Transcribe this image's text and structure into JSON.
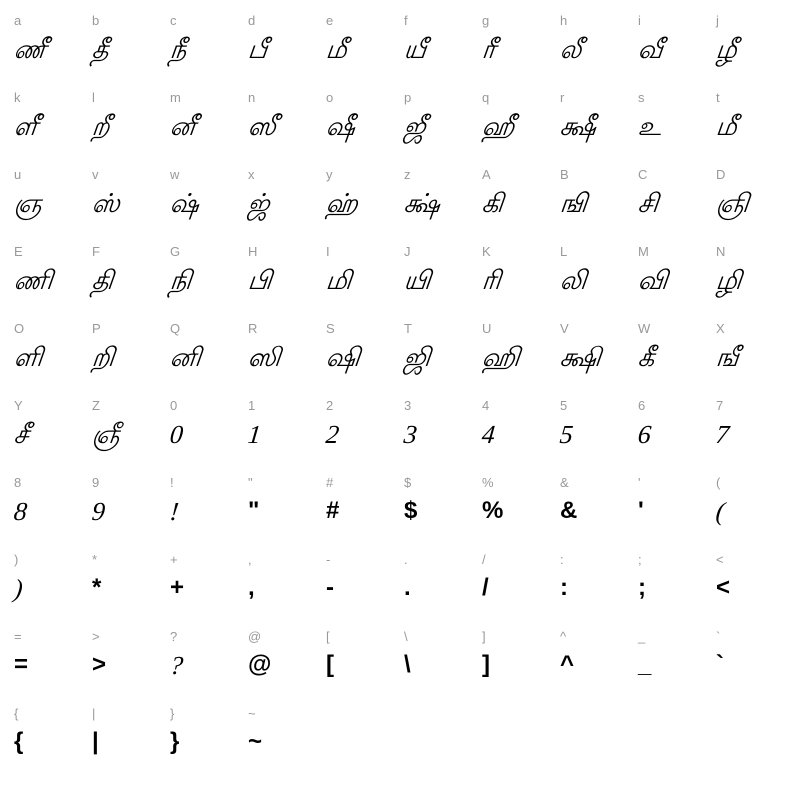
{
  "title": "font-character-map",
  "grid": {
    "columns": 10,
    "label_color": "#999999",
    "glyph_color": "#000000",
    "background_color": "#ffffff",
    "label_fontsize": 13,
    "glyph_fontsize": 26
  },
  "cells": [
    {
      "key": "a",
      "glyph": "ணீ",
      "style": "script"
    },
    {
      "key": "b",
      "glyph": "தீ",
      "style": "script"
    },
    {
      "key": "c",
      "glyph": "நீ",
      "style": "script"
    },
    {
      "key": "d",
      "glyph": "பீ",
      "style": "script"
    },
    {
      "key": "e",
      "glyph": "மீ",
      "style": "script"
    },
    {
      "key": "f",
      "glyph": "யீ",
      "style": "script"
    },
    {
      "key": "g",
      "glyph": "ரீ",
      "style": "script"
    },
    {
      "key": "h",
      "glyph": "லீ",
      "style": "script"
    },
    {
      "key": "i",
      "glyph": "வீ",
      "style": "script"
    },
    {
      "key": "j",
      "glyph": "ழீ",
      "style": "script"
    },
    {
      "key": "k",
      "glyph": "ளீ",
      "style": "script"
    },
    {
      "key": "l",
      "glyph": "றீ",
      "style": "script"
    },
    {
      "key": "m",
      "glyph": "னீ",
      "style": "script"
    },
    {
      "key": "n",
      "glyph": "ஸீ",
      "style": "script"
    },
    {
      "key": "o",
      "glyph": "ஷீ",
      "style": "script"
    },
    {
      "key": "p",
      "glyph": "ஜீ",
      "style": "script"
    },
    {
      "key": "q",
      "glyph": "ஹீ",
      "style": "script"
    },
    {
      "key": "r",
      "glyph": "க்ஷீ",
      "style": "script"
    },
    {
      "key": "s",
      "glyph": "உ",
      "style": "script"
    },
    {
      "key": "t",
      "glyph": "மீ",
      "style": "script"
    },
    {
      "key": "u",
      "glyph": "ஞ",
      "style": "script"
    },
    {
      "key": "v",
      "glyph": "ஸ்",
      "style": "script"
    },
    {
      "key": "w",
      "glyph": "ஷ்",
      "style": "script"
    },
    {
      "key": "x",
      "glyph": "ஜ்",
      "style": "script"
    },
    {
      "key": "y",
      "glyph": "ஹ்",
      "style": "script"
    },
    {
      "key": "z",
      "glyph": "க்ஷ்",
      "style": "script"
    },
    {
      "key": "A",
      "glyph": "கி",
      "style": "script"
    },
    {
      "key": "B",
      "glyph": "ஙி",
      "style": "script"
    },
    {
      "key": "C",
      "glyph": "சி",
      "style": "script"
    },
    {
      "key": "D",
      "glyph": "ஞி",
      "style": "script"
    },
    {
      "key": "E",
      "glyph": "ணி",
      "style": "script"
    },
    {
      "key": "F",
      "glyph": "தி",
      "style": "script"
    },
    {
      "key": "G",
      "glyph": "நி",
      "style": "script"
    },
    {
      "key": "H",
      "glyph": "பி",
      "style": "script"
    },
    {
      "key": "I",
      "glyph": "மி",
      "style": "script"
    },
    {
      "key": "J",
      "glyph": "யி",
      "style": "script"
    },
    {
      "key": "K",
      "glyph": "ரி",
      "style": "script"
    },
    {
      "key": "L",
      "glyph": "லி",
      "style": "script"
    },
    {
      "key": "M",
      "glyph": "வி",
      "style": "script"
    },
    {
      "key": "N",
      "glyph": "ழி",
      "style": "script"
    },
    {
      "key": "O",
      "glyph": "ளி",
      "style": "script"
    },
    {
      "key": "P",
      "glyph": "றி",
      "style": "script"
    },
    {
      "key": "Q",
      "glyph": "னி",
      "style": "script"
    },
    {
      "key": "R",
      "glyph": "ஸி",
      "style": "script"
    },
    {
      "key": "S",
      "glyph": "ஷி",
      "style": "script"
    },
    {
      "key": "T",
      "glyph": "ஜி",
      "style": "script"
    },
    {
      "key": "U",
      "glyph": "ஹி",
      "style": "script"
    },
    {
      "key": "V",
      "glyph": "க்ஷி",
      "style": "script"
    },
    {
      "key": "W",
      "glyph": "கீ",
      "style": "script"
    },
    {
      "key": "X",
      "glyph": "ஙீ",
      "style": "script"
    },
    {
      "key": "Y",
      "glyph": "சீ",
      "style": "script"
    },
    {
      "key": "Z",
      "glyph": "ஞீ",
      "style": "script"
    },
    {
      "key": "0",
      "glyph": "0",
      "style": "script"
    },
    {
      "key": "1",
      "glyph": "1",
      "style": "script"
    },
    {
      "key": "2",
      "glyph": "2",
      "style": "script"
    },
    {
      "key": "3",
      "glyph": "3",
      "style": "script"
    },
    {
      "key": "4",
      "glyph": "4",
      "style": "script"
    },
    {
      "key": "5",
      "glyph": "5",
      "style": "script"
    },
    {
      "key": "6",
      "glyph": "6",
      "style": "script"
    },
    {
      "key": "7",
      "glyph": "7",
      "style": "script"
    },
    {
      "key": "8",
      "glyph": "8",
      "style": "script"
    },
    {
      "key": "9",
      "glyph": "9",
      "style": "script"
    },
    {
      "key": "!",
      "glyph": "!",
      "style": "script"
    },
    {
      "key": "\"",
      "glyph": "\"",
      "style": "plain"
    },
    {
      "key": "#",
      "glyph": "#",
      "style": "plain"
    },
    {
      "key": "$",
      "glyph": "$",
      "style": "plain"
    },
    {
      "key": "%",
      "glyph": "%",
      "style": "plain"
    },
    {
      "key": "&",
      "glyph": "&",
      "style": "plain"
    },
    {
      "key": "'",
      "glyph": "'",
      "style": "plain"
    },
    {
      "key": "(",
      "glyph": "(",
      "style": "script"
    },
    {
      "key": ")",
      "glyph": ")",
      "style": "script"
    },
    {
      "key": "*",
      "glyph": "*",
      "style": "plain"
    },
    {
      "key": "+",
      "glyph": "+",
      "style": "plain"
    },
    {
      "key": ",",
      "glyph": ",",
      "style": "plain"
    },
    {
      "key": "-",
      "glyph": "-",
      "style": "plain"
    },
    {
      "key": ".",
      "glyph": ".",
      "style": "plain"
    },
    {
      "key": "/",
      "glyph": "/",
      "style": "plain"
    },
    {
      "key": ":",
      "glyph": ":",
      "style": "plain"
    },
    {
      "key": ";",
      "glyph": ";",
      "style": "plain"
    },
    {
      "key": "<",
      "glyph": "<",
      "style": "plain"
    },
    {
      "key": "=",
      "glyph": "=",
      "style": "plain"
    },
    {
      "key": ">",
      "glyph": ">",
      "style": "plain"
    },
    {
      "key": "?",
      "glyph": "?",
      "style": "script"
    },
    {
      "key": "@",
      "glyph": "@",
      "style": "plain"
    },
    {
      "key": "[",
      "glyph": "[",
      "style": "plain"
    },
    {
      "key": "\\",
      "glyph": "\\",
      "style": "plain"
    },
    {
      "key": "]",
      "glyph": "]",
      "style": "plain"
    },
    {
      "key": "^",
      "glyph": "^",
      "style": "plain"
    },
    {
      "key": "_",
      "glyph": "_",
      "style": "plain"
    },
    {
      "key": "`",
      "glyph": "`",
      "style": "plain"
    },
    {
      "key": "{",
      "glyph": "{",
      "style": "plain"
    },
    {
      "key": "|",
      "glyph": "|",
      "style": "plain"
    },
    {
      "key": "}",
      "glyph": "}",
      "style": "plain"
    },
    {
      "key": "~",
      "glyph": "~",
      "style": "plain"
    },
    {
      "key": "",
      "glyph": "",
      "style": "hidden"
    },
    {
      "key": "",
      "glyph": "",
      "style": "hidden"
    },
    {
      "key": "",
      "glyph": "",
      "style": "hidden"
    },
    {
      "key": "",
      "glyph": "",
      "style": "hidden"
    },
    {
      "key": "",
      "glyph": "",
      "style": "hidden"
    },
    {
      "key": "",
      "glyph": "",
      "style": "hidden"
    }
  ]
}
